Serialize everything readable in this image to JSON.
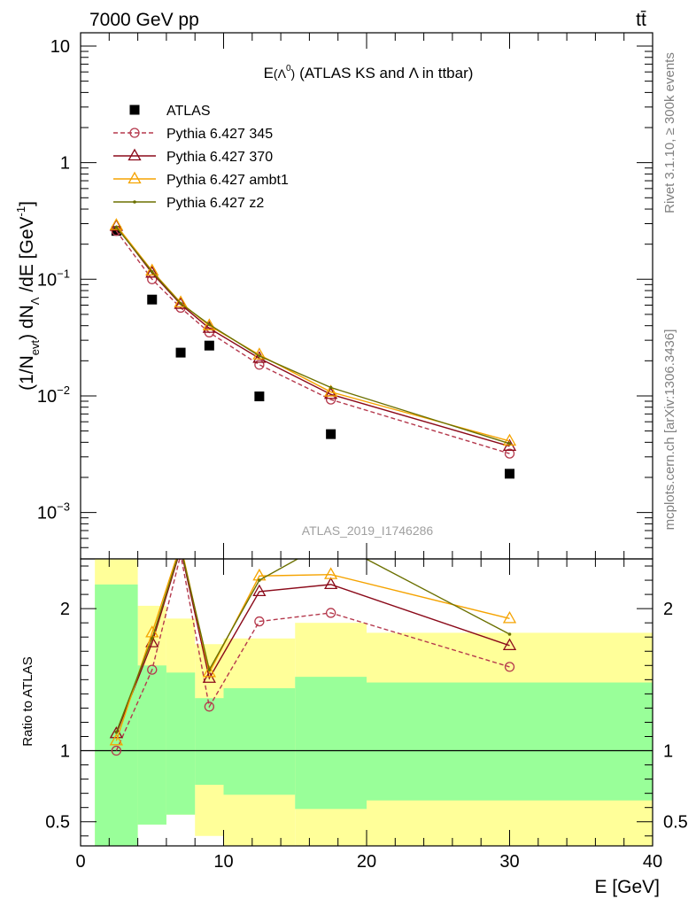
{
  "header": {
    "left_label": "7000 GeV pp",
    "right_label": "tt̄"
  },
  "side_labels": {
    "rivet": "Rivet 3.1.10, ≥ 300k events",
    "mcplots": "mcplots.cern.ch [arXiv:1306.3436]"
  },
  "chart_data": [
    {
      "type": "scatter",
      "title": "E(Λ⁰) (ATLAS KS and Λ in ttbar)",
      "title_main": "E",
      "title_paren_open": "(Λ",
      "title_sup": "0",
      "title_paren_close": ")",
      "title_rest": "(ATLAS KS and Λ in ttbar)",
      "analysis_id": "ATLAS_2019_I1746286",
      "ylabel": "(1/N_evt) dN_Λ/dE [GeV⁻¹]",
      "ylabel_parts": {
        "a": "(1/N",
        "sub1": "evt",
        "b": ") dN",
        "sub2": "Λ",
        "c": " /dE [GeV",
        "sup": "-1",
        "d": "]"
      },
      "yscale": "log",
      "xlim": [
        0,
        40
      ],
      "ylim": [
        0.0004,
        13
      ],
      "yticks": [
        {
          "v": 0.001,
          "base": "10",
          "exp": "−3"
        },
        {
          "v": 0.01,
          "base": "10",
          "exp": "−2"
        },
        {
          "v": 0.1,
          "base": "10",
          "exp": "−1"
        },
        {
          "v": 1,
          "base": "1",
          "exp": ""
        },
        {
          "v": 10,
          "base": "10",
          "exp": ""
        }
      ],
      "legend_position": "top-left",
      "x": [
        2.5,
        5,
        7,
        9,
        12.5,
        17.5,
        30
      ],
      "series": [
        {
          "name": "ATLAS",
          "color": "#000000",
          "marker": "square",
          "line": "none",
          "values": [
            0.26,
            0.067,
            0.0235,
            0.027,
            0.0099,
            0.0047,
            0.00215
          ]
        },
        {
          "name": "Pythia 6.427 345",
          "color": "#b5394d",
          "marker": "circle",
          "line": "dashed",
          "values": [
            0.26,
            0.1,
            0.057,
            0.035,
            0.0185,
            0.0093,
            0.0032
          ]
        },
        {
          "name": "Pythia 6.427 370",
          "color": "#8b0a1a",
          "marker": "triangle",
          "line": "solid",
          "values": [
            0.285,
            0.113,
            0.061,
            0.038,
            0.021,
            0.0103,
            0.0037
          ]
        },
        {
          "name": "Pythia 6.427 ambt1",
          "color": "#f5a300",
          "marker": "triangle",
          "line": "solid",
          "values": [
            0.29,
            0.118,
            0.063,
            0.04,
            0.0225,
            0.0108,
            0.0041
          ]
        },
        {
          "name": "Pythia 6.427 z2",
          "color": "#6b7000",
          "marker": "dot",
          "line": "solid",
          "values": [
            0.28,
            0.116,
            0.062,
            0.041,
            0.022,
            0.0118,
            0.0039
          ]
        }
      ]
    },
    {
      "type": "line",
      "ylabel": "Ratio to ATLAS",
      "xlabel": "E [GeV]",
      "xlim": [
        0,
        40
      ],
      "ylim": [
        0.33,
        2.35
      ],
      "xticks": [
        0,
        10,
        20,
        30,
        40
      ],
      "yticks": [
        0.5,
        1,
        2
      ],
      "reference_line": 1,
      "bands": {
        "bins": [
          [
            1,
            4
          ],
          [
            4,
            6
          ],
          [
            6,
            8
          ],
          [
            8,
            10
          ],
          [
            10,
            15
          ],
          [
            15,
            20
          ],
          [
            20,
            40
          ]
        ],
        "yellow": [
          [
            0.33,
            2.35
          ],
          [
            0.48,
            2.02
          ],
          [
            0.55,
            1.93
          ],
          [
            0.4,
            1.75
          ],
          [
            0.33,
            1.79
          ],
          [
            0.33,
            1.9
          ],
          [
            0.33,
            1.83
          ]
        ],
        "green": [
          [
            0.33,
            2.17
          ],
          [
            0.48,
            1.6
          ],
          [
            0.55,
            1.55
          ],
          [
            0.76,
            1.37
          ],
          [
            0.69,
            1.44
          ],
          [
            0.59,
            1.52
          ],
          [
            0.65,
            1.48
          ]
        ],
        "yellow_color": "#ffff99",
        "green_color": "#99ff99"
      },
      "x": [
        2.5,
        5,
        7,
        9,
        12.5,
        17.5,
        30
      ],
      "series": [
        {
          "name": "Pythia 6.427 345",
          "color": "#b5394d",
          "marker": "circle",
          "line": "dashed",
          "values": [
            1.0,
            1.57,
            2.38,
            1.31,
            1.91,
            1.97,
            1.59
          ]
        },
        {
          "name": "Pythia 6.427 370",
          "color": "#8b0a1a",
          "marker": "triangle",
          "line": "solid",
          "values": [
            1.12,
            1.76,
            2.42,
            1.51,
            2.12,
            2.17,
            1.74
          ]
        },
        {
          "name": "Pythia 6.427 ambt1",
          "color": "#f5a300",
          "marker": "triangle",
          "line": "solid",
          "values": [
            1.07,
            1.83,
            2.45,
            1.55,
            2.23,
            2.24,
            1.93
          ]
        },
        {
          "name": "Pythia 6.427 z2",
          "color": "#6b7000",
          "marker": "dot",
          "line": "solid",
          "values": [
            1.13,
            1.79,
            2.43,
            1.57,
            2.2,
            2.48,
            1.82
          ]
        }
      ]
    }
  ]
}
